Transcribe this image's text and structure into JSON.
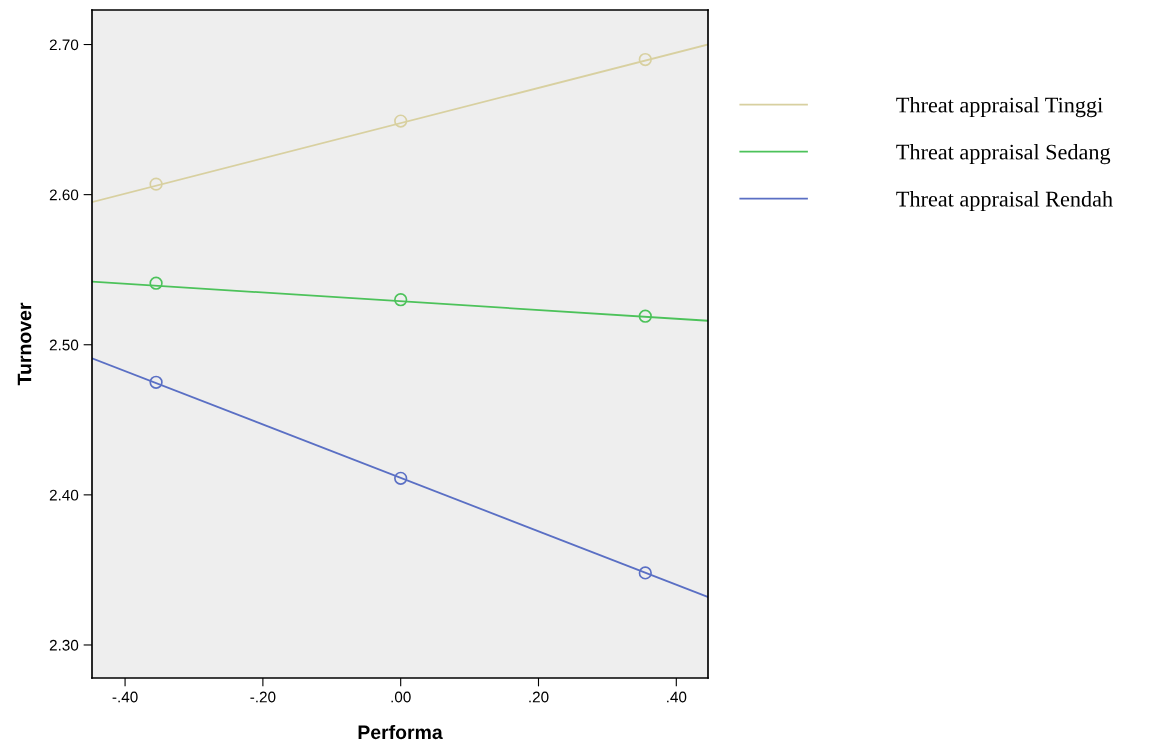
{
  "chart_data": {
    "type": "line",
    "xlabel": "Performa",
    "ylabel": "Turnover",
    "xlim": [
      -0.448,
      0.446
    ],
    "ylim": [
      2.278,
      2.723
    ],
    "xticks": [
      {
        "value": -0.4,
        "label": "-.40"
      },
      {
        "value": -0.2,
        "label": "-.20"
      },
      {
        "value": 0,
        "label": ".00"
      },
      {
        "value": 0.2,
        "label": ".20"
      },
      {
        "value": 0.4,
        "label": ".40"
      }
    ],
    "yticks": [
      {
        "value": 2.3,
        "label": "2.30"
      },
      {
        "value": 2.4,
        "label": "2.40"
      },
      {
        "value": 2.5,
        "label": "2.50"
      },
      {
        "value": 2.6,
        "label": "2.60"
      },
      {
        "value": 2.7,
        "label": "2.70"
      }
    ],
    "grid": false,
    "legend": "right",
    "series": [
      {
        "type": "scatter",
        "marker": "circle",
        "color": "#d8d0a0",
        "x": [
          -0.355,
          0,
          0.355
        ],
        "values": [
          2.607,
          2.649,
          2.69
        ]
      },
      {
        "type": "scatter",
        "marker": "circle",
        "color": "#4cc25a",
        "x": [
          -0.355,
          0,
          0.355
        ],
        "values": [
          2.541,
          2.53,
          2.519
        ]
      },
      {
        "type": "scatter",
        "marker": "circle",
        "color": "#5a6fc4",
        "x": [
          -0.355,
          0,
          0.355
        ],
        "values": [
          2.475,
          2.411,
          2.348
        ]
      },
      {
        "name": "Threat appraisal Tinggi",
        "color": "#d8d0a0",
        "x": [
          -0.448,
          0.446
        ],
        "values": [
          2.595,
          2.7
        ]
      },
      {
        "name": "Threat appraisal Sedang",
        "color": "#4cc25a",
        "x": [
          -0.448,
          0.446
        ],
        "values": [
          2.542,
          2.516
        ]
      },
      {
        "name": "Threat appraisal Rendah",
        "color": "#5a6fc4",
        "x": [
          -0.448,
          0.446
        ],
        "values": [
          2.491,
          2.332
        ]
      }
    ]
  }
}
